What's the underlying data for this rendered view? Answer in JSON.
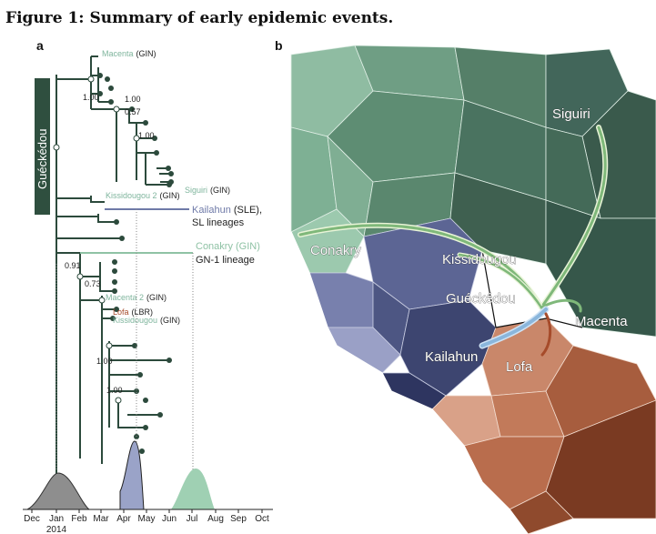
{
  "figure": {
    "title": "Figure 1: Summary of early epidemic events."
  },
  "panel_a": {
    "label": "a",
    "clade_label": "Guéckédou",
    "tip_labels": [
      {
        "place": "Macenta",
        "country": "(GIN)"
      },
      {
        "place": "Siguiri",
        "country": "(GIN)"
      },
      {
        "place": "Kissidougou 2",
        "country": "(GIN)"
      },
      {
        "place": "Kailahun",
        "country": "(SLE),"
      },
      {
        "place": "Conakry (GIN)",
        "country": ""
      },
      {
        "place": "Macenta 2",
        "country": "(GIN)"
      },
      {
        "place": "Lofa",
        "country": "(LBR)"
      },
      {
        "place": "Kissidougou",
        "country": "(GIN)"
      }
    ],
    "lineage_notes": [
      "SL lineages",
      "GN-1 lineage"
    ],
    "support_values": [
      "1.00",
      "1.00",
      "0.57",
      "1.00",
      "0.91",
      "0.73",
      "1.00",
      "1.00"
    ],
    "months": [
      "Dec",
      "Jan",
      "Feb",
      "Mar",
      "Apr",
      "May",
      "Jun",
      "Jul",
      "Aug",
      "Sep",
      "Oct"
    ],
    "year": "2014",
    "colors": {
      "tree": "#2c4a3c",
      "gueckedou": "#2f4f3f",
      "macenta": "#7fb59d",
      "kailahun": "#6f7aa8",
      "lofa": "#a64b2a",
      "conakry": "#8fc2a5",
      "density_gray": "#8e8e8e",
      "density_blue": "#9aa3c8",
      "density_green": "#9fd0b3"
    }
  },
  "panel_b": {
    "label": "b",
    "map_labels": [
      "Siguiri",
      "Conakry",
      "Kissidougou",
      "Guéckédou",
      "Macenta",
      "Kailahun",
      "Lofa"
    ]
  }
}
